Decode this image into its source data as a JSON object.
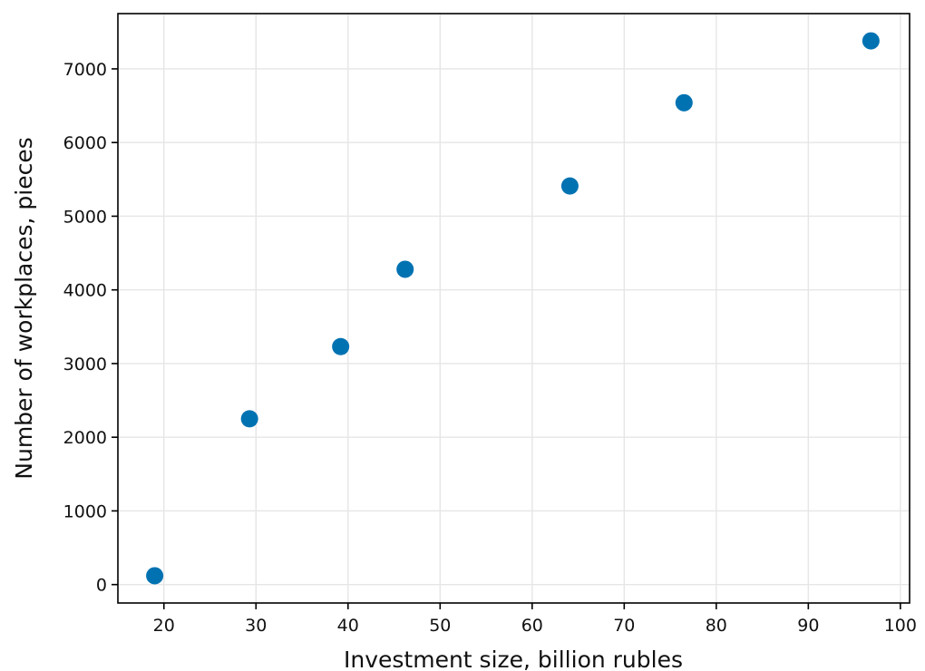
{
  "chart_data": {
    "type": "scatter",
    "title": "",
    "xlabel": "Investment size, billion rubles",
    "ylabel": "Number of workplaces, pieces",
    "xlim": [
      15,
      101
    ],
    "ylim": [
      -250,
      7750
    ],
    "xticks": [
      20,
      30,
      40,
      50,
      60,
      70,
      80,
      90,
      100
    ],
    "yticks": [
      0,
      1000,
      2000,
      3000,
      4000,
      5000,
      6000,
      7000
    ],
    "grid": true,
    "point_color": "#0072b2",
    "series": [
      {
        "x": [
          19,
          29.3,
          39.2,
          46.2,
          64.1,
          76.5,
          96.8
        ],
        "y": [
          120,
          2250,
          3230,
          4280,
          5410,
          6540,
          7380
        ]
      }
    ]
  }
}
